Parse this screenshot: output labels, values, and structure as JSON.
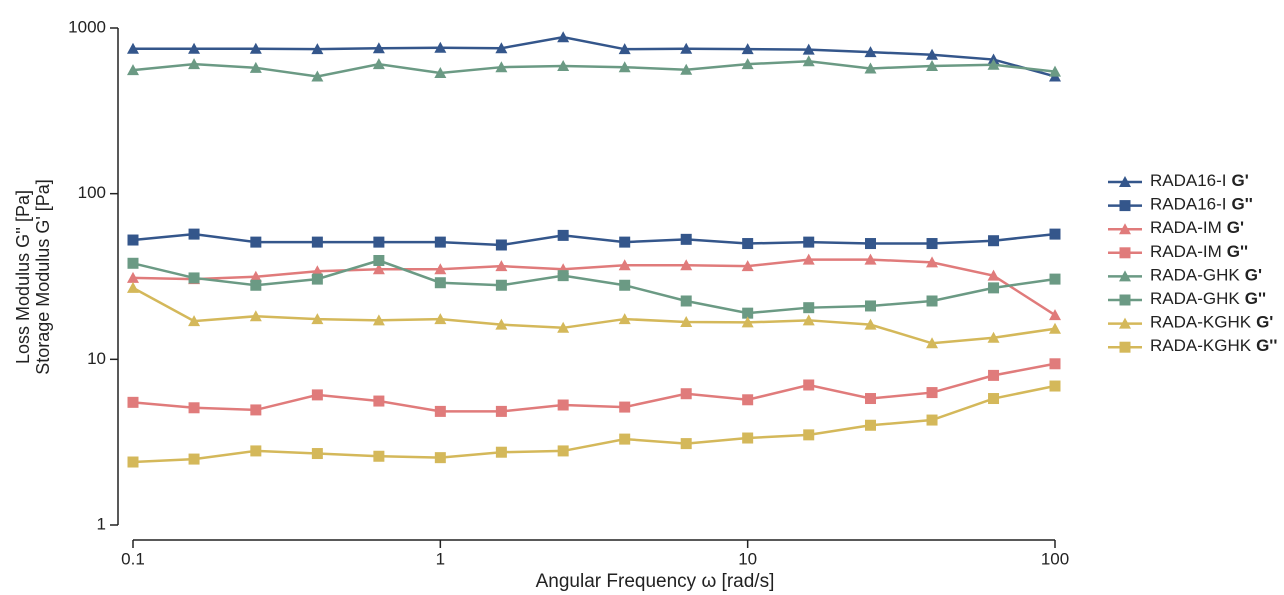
{
  "chart_data": {
    "type": "line",
    "y_label_lines": [
      "Loss Modulus G'' [Pa]",
      "Storage Modulus G' [Pa]"
    ],
    "x_label": "Angular Frequency ω  [rad/s]",
    "x": [
      0.1,
      0.158,
      0.251,
      0.398,
      0.631,
      1,
      1.58,
      2.51,
      3.98,
      6.31,
      10,
      15.8,
      25.1,
      39.8,
      63.1,
      100
    ],
    "xlim": [
      0.1,
      100
    ],
    "xticks": [
      0.1,
      1,
      10,
      100
    ],
    "ylim": [
      1,
      1000
    ],
    "yticks": [
      1,
      10,
      100,
      1000
    ],
    "xscale": "log",
    "yscale": "log",
    "series": [
      {
        "name": "RADA16-I",
        "modulus": "G'",
        "marker": "triangle",
        "color": "#34568b",
        "values": [
          750,
          750,
          750,
          745,
          755,
          760,
          755,
          880,
          745,
          750,
          745,
          740,
          715,
          690,
          645,
          510
        ]
      },
      {
        "name": "RADA16-I",
        "modulus": "G''",
        "marker": "square",
        "color": "#34568b",
        "values": [
          52.5,
          57,
          51,
          51,
          51,
          51,
          49,
          56,
          51,
          53,
          50,
          51,
          50,
          50,
          52,
          57
        ]
      },
      {
        "name": "RADA-IM",
        "modulus": "G'",
        "marker": "triangle",
        "color": "#e07b7b",
        "values": [
          31,
          30.5,
          31.5,
          34,
          35,
          35,
          36.5,
          35,
          37,
          37,
          36.5,
          40,
          40,
          38.5,
          32,
          18.5
        ]
      },
      {
        "name": "RADA-IM",
        "modulus": "G''",
        "marker": "square",
        "color": "#e07b7b",
        "values": [
          5.5,
          5.1,
          4.95,
          6.1,
          5.6,
          4.85,
          4.85,
          5.3,
          5.15,
          6.2,
          5.7,
          7,
          5.8,
          6.3,
          8,
          9.4
        ]
      },
      {
        "name": "RADA-GHK",
        "modulus": "G'",
        "marker": "triangle",
        "color": "#6b9a84",
        "values": [
          557,
          605,
          575,
          510,
          605,
          535,
          580,
          590,
          580,
          560,
          605,
          630,
          570,
          590,
          600,
          545
        ]
      },
      {
        "name": "RADA-GHK",
        "modulus": "G''",
        "marker": "square",
        "color": "#6b9a84",
        "values": [
          38,
          31,
          28,
          30.5,
          39.5,
          29,
          28,
          32,
          28,
          22.5,
          19,
          20.5,
          21,
          22.5,
          27,
          30.5
        ]
      },
      {
        "name": "RADA-KGHK",
        "modulus": "G'",
        "marker": "triangle",
        "color": "#d4b85a",
        "values": [
          27,
          17,
          18.2,
          17.5,
          17.2,
          17.5,
          16.2,
          15.5,
          17.5,
          16.8,
          16.7,
          17.2,
          16.2,
          12.5,
          13.5,
          15.3
        ]
      },
      {
        "name": "RADA-KGHK",
        "modulus": "G''",
        "marker": "square",
        "color": "#d4b85a",
        "values": [
          2.4,
          2.5,
          2.8,
          2.7,
          2.6,
          2.55,
          2.75,
          2.8,
          3.3,
          3.1,
          3.35,
          3.5,
          4,
          4.3,
          5.8,
          6.9
        ]
      }
    ]
  }
}
